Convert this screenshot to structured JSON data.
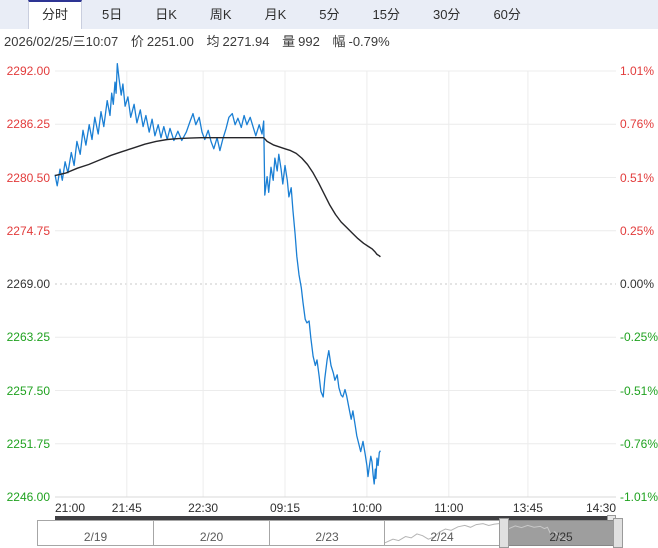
{
  "tabs": {
    "items": [
      {
        "label": "分时",
        "active": true
      },
      {
        "label": "5日",
        "active": false
      },
      {
        "label": "日K",
        "active": false
      },
      {
        "label": "周K",
        "active": false
      },
      {
        "label": "月K",
        "active": false
      },
      {
        "label": "5分",
        "active": false
      },
      {
        "label": "15分",
        "active": false
      },
      {
        "label": "30分",
        "active": false
      },
      {
        "label": "60分",
        "active": false
      }
    ]
  },
  "info_bar": {
    "datetime": "2026/02/25/三10:07",
    "price_label": "价",
    "price": "2251.00",
    "avg_label": "均",
    "avg": "2271.94",
    "volume_label": "量",
    "volume": "992",
    "change_label": "幅",
    "change": "-0.79%"
  },
  "colors": {
    "up": "#e23b3b",
    "down": "#20a220",
    "neutral": "#333333",
    "price_line": "#1a7fd4",
    "avg_line": "#26262a",
    "grid": "#ececec",
    "baseline_grid": "#c8c8c8",
    "tab_accent": "#2d3493",
    "tabbar_bg": "#e9edf6",
    "scrollbar": "#3f3f42",
    "nav_selected_bg": "#9e9e9e",
    "spark_24": "#b4b4b4",
    "spark_25": "#c9c9c9"
  },
  "chart_data": {
    "type": "line",
    "title": "",
    "xlabel": "",
    "ylabel": "",
    "ylim": [
      2246,
      2292
    ],
    "baseline": 2269.0,
    "grid": true,
    "y_left_ticks": [
      "2292.00",
      "2286.25",
      "2280.50",
      "2274.75",
      "2269.00",
      "2263.25",
      "2257.50",
      "2251.75",
      "2246.00"
    ],
    "y_right_ticks": [
      "1.01%",
      "0.76%",
      "0.51%",
      "0.25%",
      "0.00%",
      "-0.25%",
      "-0.51%",
      "-0.76%",
      "-1.01%"
    ],
    "x_ticks": [
      {
        "label": "21:00",
        "pos": 0.0
      },
      {
        "label": "21:45",
        "pos": 0.128
      },
      {
        "label": "22:30",
        "pos": 0.264
      },
      {
        "label": "09:15",
        "pos": 0.41
      },
      {
        "label": "10:00",
        "pos": 0.556
      },
      {
        "label": "11:00",
        "pos": 0.702
      },
      {
        "label": "13:45",
        "pos": 0.843
      },
      {
        "label": "14:30",
        "pos": 1.0
      }
    ],
    "series": [
      {
        "name": "price",
        "points": [
          [
            0.0,
            2280.8
          ],
          [
            0.004,
            2279.6
          ],
          [
            0.009,
            2281.4
          ],
          [
            0.013,
            2280.2
          ],
          [
            0.018,
            2282.2
          ],
          [
            0.023,
            2281.0
          ],
          [
            0.029,
            2283.2
          ],
          [
            0.034,
            2281.8
          ],
          [
            0.039,
            2284.4
          ],
          [
            0.045,
            2283.0
          ],
          [
            0.05,
            2285.6
          ],
          [
            0.055,
            2284.0
          ],
          [
            0.061,
            2286.2
          ],
          [
            0.066,
            2284.6
          ],
          [
            0.071,
            2287.0
          ],
          [
            0.077,
            2285.2
          ],
          [
            0.082,
            2287.6
          ],
          [
            0.087,
            2286.0
          ],
          [
            0.093,
            2288.8
          ],
          [
            0.098,
            2287.2
          ],
          [
            0.101,
            2289.6
          ],
          [
            0.104,
            2288.4
          ],
          [
            0.107,
            2290.8
          ],
          [
            0.109,
            2289.6
          ],
          [
            0.111,
            2292.8
          ],
          [
            0.114,
            2291.2
          ],
          [
            0.118,
            2289.4
          ],
          [
            0.121,
            2290.6
          ],
          [
            0.125,
            2288.2
          ],
          [
            0.13,
            2289.2
          ],
          [
            0.135,
            2287.0
          ],
          [
            0.141,
            2288.4
          ],
          [
            0.146,
            2286.4
          ],
          [
            0.152,
            2287.8
          ],
          [
            0.157,
            2286.0
          ],
          [
            0.162,
            2287.2
          ],
          [
            0.168,
            2285.4
          ],
          [
            0.173,
            2286.8
          ],
          [
            0.178,
            2285.0
          ],
          [
            0.184,
            2286.2
          ],
          [
            0.189,
            2284.8
          ],
          [
            0.194,
            2286.0
          ],
          [
            0.2,
            2284.6
          ],
          [
            0.205,
            2285.8
          ],
          [
            0.212,
            2284.5
          ],
          [
            0.219,
            2285.5
          ],
          [
            0.226,
            2284.5
          ],
          [
            0.234,
            2285.4
          ],
          [
            0.241,
            2286.6
          ],
          [
            0.246,
            2287.4
          ],
          [
            0.251,
            2286.2
          ],
          [
            0.257,
            2287.0
          ],
          [
            0.262,
            2285.4
          ],
          [
            0.267,
            2284.6
          ],
          [
            0.273,
            2285.6
          ],
          [
            0.278,
            2284.4
          ],
          [
            0.283,
            2283.6
          ],
          [
            0.289,
            2284.8
          ],
          [
            0.294,
            2283.4
          ],
          [
            0.299,
            2284.6
          ],
          [
            0.305,
            2285.8
          ],
          [
            0.31,
            2287.0
          ],
          [
            0.316,
            2287.4
          ],
          [
            0.321,
            2286.2
          ],
          [
            0.326,
            2286.9
          ],
          [
            0.332,
            2285.9
          ],
          [
            0.337,
            2287.2
          ],
          [
            0.342,
            2286.2
          ],
          [
            0.348,
            2287.0
          ],
          [
            0.353,
            2286.0
          ],
          [
            0.358,
            2285.0
          ],
          [
            0.364,
            2286.2
          ],
          [
            0.369,
            2285.2
          ],
          [
            0.372,
            2286.6
          ],
          [
            0.374,
            2278.6
          ],
          [
            0.378,
            2280.6
          ],
          [
            0.381,
            2278.9
          ],
          [
            0.385,
            2281.6
          ],
          [
            0.389,
            2280.2
          ],
          [
            0.392,
            2282.6
          ],
          [
            0.396,
            2281.2
          ],
          [
            0.399,
            2283.0
          ],
          [
            0.403,
            2281.4
          ],
          [
            0.406,
            2279.8
          ],
          [
            0.41,
            2281.8
          ],
          [
            0.414,
            2280.2
          ],
          [
            0.417,
            2278.4
          ],
          [
            0.421,
            2279.4
          ],
          [
            0.424,
            2277.0
          ],
          [
            0.428,
            2274.4
          ],
          [
            0.431,
            2272.0
          ],
          [
            0.435,
            2270.0
          ],
          [
            0.439,
            2268.6
          ],
          [
            0.442,
            2267.0
          ],
          [
            0.446,
            2265.2
          ],
          [
            0.449,
            2264.8
          ],
          [
            0.453,
            2265.0
          ],
          [
            0.456,
            2263.2
          ],
          [
            0.46,
            2261.2
          ],
          [
            0.464,
            2260.2
          ],
          [
            0.467,
            2260.8
          ],
          [
            0.471,
            2259.0
          ],
          [
            0.474,
            2257.4
          ],
          [
            0.478,
            2256.8
          ],
          [
            0.481,
            2258.8
          ],
          [
            0.485,
            2260.8
          ],
          [
            0.488,
            2261.8
          ],
          [
            0.492,
            2260.2
          ],
          [
            0.496,
            2259.4
          ],
          [
            0.499,
            2258.6
          ],
          [
            0.503,
            2259.2
          ],
          [
            0.506,
            2257.8
          ],
          [
            0.51,
            2257.0
          ],
          [
            0.513,
            2256.8
          ],
          [
            0.517,
            2257.6
          ],
          [
            0.52,
            2256.9
          ],
          [
            0.524,
            2255.6
          ],
          [
            0.528,
            2254.4
          ],
          [
            0.531,
            2255.3
          ],
          [
            0.535,
            2253.8
          ],
          [
            0.538,
            2252.6
          ],
          [
            0.542,
            2251.6
          ],
          [
            0.545,
            2250.9
          ],
          [
            0.549,
            2252.0
          ],
          [
            0.553,
            2250.6
          ],
          [
            0.556,
            2249.4
          ],
          [
            0.558,
            2248.2
          ],
          [
            0.56,
            2249.2
          ],
          [
            0.563,
            2250.4
          ],
          [
            0.565,
            2249.8
          ],
          [
            0.567,
            2248.4
          ],
          [
            0.569,
            2247.4
          ],
          [
            0.571,
            2249.0
          ],
          [
            0.572,
            2248.0
          ],
          [
            0.574,
            2250.2
          ],
          [
            0.576,
            2249.4
          ],
          [
            0.578,
            2250.8
          ],
          [
            0.58,
            2251.0
          ]
        ]
      },
      {
        "name": "average",
        "points": [
          [
            0.0,
            2280.7
          ],
          [
            0.02,
            2281.0
          ],
          [
            0.04,
            2281.5
          ],
          [
            0.06,
            2281.9
          ],
          [
            0.08,
            2282.4
          ],
          [
            0.1,
            2282.9
          ],
          [
            0.12,
            2283.3
          ],
          [
            0.14,
            2283.7
          ],
          [
            0.16,
            2284.1
          ],
          [
            0.18,
            2284.4
          ],
          [
            0.2,
            2284.6
          ],
          [
            0.22,
            2284.7
          ],
          [
            0.24,
            2284.75
          ],
          [
            0.26,
            2284.8
          ],
          [
            0.28,
            2284.8
          ],
          [
            0.3,
            2284.8
          ],
          [
            0.32,
            2284.8
          ],
          [
            0.34,
            2284.8
          ],
          [
            0.36,
            2284.8
          ],
          [
            0.372,
            2284.8
          ],
          [
            0.378,
            2284.4
          ],
          [
            0.39,
            2284.0
          ],
          [
            0.4,
            2283.8
          ],
          [
            0.41,
            2283.6
          ],
          [
            0.42,
            2283.4
          ],
          [
            0.43,
            2283.1
          ],
          [
            0.44,
            2282.6
          ],
          [
            0.45,
            2281.9
          ],
          [
            0.46,
            2281.0
          ],
          [
            0.47,
            2279.9
          ],
          [
            0.48,
            2278.7
          ],
          [
            0.49,
            2277.5
          ],
          [
            0.5,
            2276.5
          ],
          [
            0.51,
            2275.7
          ],
          [
            0.52,
            2275.1
          ],
          [
            0.53,
            2274.5
          ],
          [
            0.54,
            2273.9
          ],
          [
            0.55,
            2273.4
          ],
          [
            0.56,
            2273.0
          ],
          [
            0.565,
            2272.8
          ],
          [
            0.57,
            2272.5
          ],
          [
            0.574,
            2272.2
          ],
          [
            0.578,
            2272.05
          ],
          [
            0.58,
            2271.94
          ]
        ]
      }
    ]
  },
  "navigator": {
    "items": [
      {
        "label": "2/19",
        "type": "plain",
        "selected": false
      },
      {
        "label": "2/20",
        "type": "plain",
        "selected": false
      },
      {
        "label": "2/23",
        "type": "plain",
        "selected": false
      },
      {
        "label": "2/24",
        "type": "sparkline",
        "selected": false
      },
      {
        "label": "2/25",
        "type": "sparkline",
        "selected": true
      }
    ],
    "spark_24": [
      [
        0,
        0.06
      ],
      [
        0.07,
        0.22
      ],
      [
        0.12,
        0.16
      ],
      [
        0.18,
        0.34
      ],
      [
        0.23,
        0.28
      ],
      [
        0.28,
        0.46
      ],
      [
        0.33,
        0.38
      ],
      [
        0.38,
        0.22
      ],
      [
        0.43,
        0.32
      ],
      [
        0.48,
        0.55
      ],
      [
        0.53,
        0.68
      ],
      [
        0.58,
        0.62
      ],
      [
        0.64,
        0.78
      ],
      [
        0.7,
        0.84
      ],
      [
        0.75,
        0.76
      ],
      [
        0.8,
        0.88
      ],
      [
        0.86,
        0.92
      ],
      [
        0.91,
        0.84
      ],
      [
        0.96,
        0.9
      ],
      [
        1,
        0.92
      ]
    ],
    "spark_25": [
      [
        0,
        0.7
      ],
      [
        0.06,
        0.82
      ],
      [
        0.12,
        0.74
      ],
      [
        0.18,
        0.84
      ],
      [
        0.24,
        0.76
      ],
      [
        0.3,
        0.8
      ],
      [
        0.34,
        0.7
      ],
      [
        0.37,
        0.76
      ],
      [
        0.4,
        0.46
      ],
      [
        0.44,
        0.56
      ],
      [
        0.48,
        0.34
      ],
      [
        0.52,
        0.24
      ],
      [
        0.56,
        0.16
      ],
      [
        0.58,
        0.22
      ]
    ]
  }
}
